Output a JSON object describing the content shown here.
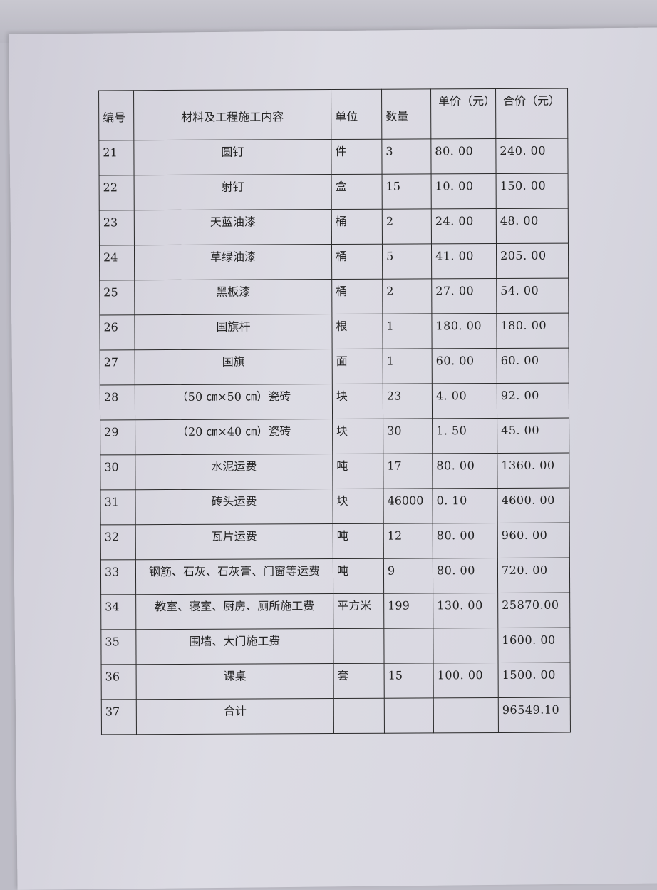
{
  "table": {
    "headers": {
      "no": "编号",
      "content": "材料及工程施工内容",
      "unit": "单位",
      "qty": "数量",
      "unit_price": "单价（元）",
      "total": "合价（元）"
    },
    "rows": [
      {
        "no": "21",
        "content": "圆钉",
        "unit": "件",
        "qty": "3",
        "price": "80. 00",
        "total": "240. 00"
      },
      {
        "no": "22",
        "content": "射钉",
        "unit": "盒",
        "qty": "15",
        "price": "10. 00",
        "total": "150. 00"
      },
      {
        "no": "23",
        "content": "天蓝油漆",
        "unit": "桶",
        "qty": "2",
        "price": "24. 00",
        "total": "48. 00"
      },
      {
        "no": "24",
        "content": "草绿油漆",
        "unit": "桶",
        "qty": "5",
        "price": "41. 00",
        "total": "205. 00"
      },
      {
        "no": "25",
        "content": "黑板漆",
        "unit": "桶",
        "qty": "2",
        "price": "27. 00",
        "total": "54. 00"
      },
      {
        "no": "26",
        "content": "国旗杆",
        "unit": "根",
        "qty": "1",
        "price": "180. 00",
        "total": "180. 00"
      },
      {
        "no": "27",
        "content": "国旗",
        "unit": "面",
        "qty": "1",
        "price": "60. 00",
        "total": "60. 00"
      },
      {
        "no": "28",
        "content": "（50 ㎝×50 ㎝）瓷砖",
        "unit": "块",
        "qty": "23",
        "price": "4. 00",
        "total": "92. 00"
      },
      {
        "no": "29",
        "content": "（20 ㎝×40 ㎝）瓷砖",
        "unit": "块",
        "qty": "30",
        "price": "1. 50",
        "total": "45. 00"
      },
      {
        "no": "30",
        "content": "水泥运费",
        "unit": "吨",
        "qty": "17",
        "price": "80. 00",
        "total": "1360. 00"
      },
      {
        "no": "31",
        "content": "砖头运费",
        "unit": "块",
        "qty": "46000",
        "price": "0. 10",
        "total": "4600. 00"
      },
      {
        "no": "32",
        "content": "瓦片运费",
        "unit": "吨",
        "qty": "12",
        "price": "80. 00",
        "total": "960. 00"
      },
      {
        "no": "33",
        "content": "钢筋、石灰、石灰膏、门窗等运费",
        "unit": "吨",
        "qty": "9",
        "price": "80. 00",
        "total": "720. 00"
      },
      {
        "no": "34",
        "content": "教室、寝室、厨房、厕所施工费",
        "unit": "平方米",
        "qty": "199",
        "price": "130. 00",
        "total": "25870.00"
      },
      {
        "no": "35",
        "content": "围墙、大门施工费",
        "unit": "",
        "qty": "",
        "price": "",
        "total": "1600. 00"
      },
      {
        "no": "36",
        "content": "课桌",
        "unit": "套",
        "qty": "15",
        "price": "100. 00",
        "total": "1500. 00"
      },
      {
        "no": "37",
        "content": "合计",
        "unit": "",
        "qty": "",
        "price": "",
        "total": "96549.10"
      }
    ]
  }
}
